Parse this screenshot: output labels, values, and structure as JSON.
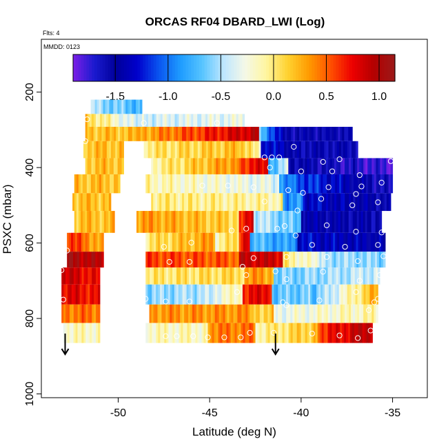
{
  "chart_data": {
    "type": "heatmap",
    "title": "ORCAS RF04 DBARD_LWI (Log)",
    "note_top": "Flts: 4",
    "note_inside": "MMDD: 0123",
    "xlabel": "Latitude (deg N)",
    "ylabel": "PSXC (mbar)",
    "xlim": [
      -54.2,
      -33.1
    ],
    "ylim": [
      1010,
      60
    ],
    "y_reversed": true,
    "x_ticks": [
      -50,
      -45,
      -40,
      -35
    ],
    "y_ticks": [
      200,
      400,
      600,
      800,
      1000
    ],
    "colorbar": {
      "range": [
        -1.9,
        1.15
      ],
      "ticks": [
        -1.5,
        -1.0,
        -0.5,
        0.0,
        0.5,
        1.0
      ],
      "colors": [
        "#7b1fe6",
        "#1a1acf",
        "#00009a",
        "#0000cc",
        "#0a55f0",
        "#1e9bff",
        "#55c4ff",
        "#bde6ff",
        "#f4f8e8",
        "#fff6a0",
        "#ffd230",
        "#ff9a00",
        "#ff5000",
        "#ee0000",
        "#b40000",
        "#9b1a1a"
      ]
    },
    "arrows_at_latitude": [
      -52.9,
      -41.4
    ],
    "bands": [
      {
        "p0": 220,
        "p1": 258,
        "segments": [
          [
            -51.5,
            -48.7,
            [
              -0.5,
              -0.75
            ]
          ]
        ]
      },
      {
        "p0": 258,
        "p1": 292,
        "segments": [
          [
            -51.8,
            -48.7,
            [
              0.15,
              -0.5
            ]
          ],
          [
            -48.7,
            -43.1,
            [
              -0.4,
              -0.3
            ]
          ]
        ]
      },
      {
        "p0": 292,
        "p1": 330,
        "segments": [
          [
            -51.8,
            -48.9,
            [
              0.2,
              0.2
            ]
          ],
          [
            -48.9,
            -42.3,
            [
              0.25,
              0.95
            ]
          ],
          [
            -42.3,
            -41.0,
            [
              -0.6,
              -1.45
            ]
          ],
          [
            -41.0,
            -37.2,
            [
              -1.55,
              -1.55
            ]
          ]
        ]
      },
      {
        "p0": 330,
        "p1": 375,
        "segments": [
          [
            -51.9,
            -49.7,
            [
              0.2,
              0.2
            ]
          ],
          [
            -48.6,
            -43.5,
            [
              0.0,
              0.2
            ]
          ],
          [
            -43.5,
            -42.2,
            [
              0.3,
              -0.2
            ]
          ],
          [
            -42.2,
            -40.0,
            [
              -1.2,
              -1.55
            ]
          ],
          [
            -40.0,
            -36.9,
            [
              -1.55,
              -1.55
            ]
          ]
        ]
      },
      {
        "p0": 375,
        "p1": 418,
        "segments": [
          [
            -51.8,
            -49.7,
            [
              0.2,
              0.2
            ]
          ],
          [
            -48.2,
            -43.4,
            [
              -0.1,
              0.4
            ]
          ],
          [
            -43.4,
            -41.8,
            [
              0.6,
              0.8
            ]
          ],
          [
            -41.8,
            -40.7,
            [
              -0.8,
              -0.4
            ]
          ],
          [
            -40.7,
            -35.0,
            [
              -1.5,
              -1.8
            ]
          ]
        ]
      },
      {
        "p0": 418,
        "p1": 468,
        "segments": [
          [
            -52.4,
            -49.9,
            [
              0.2,
              0.2
            ]
          ],
          [
            -48.5,
            -41.2,
            [
              -0.1,
              -0.35
            ]
          ],
          [
            -41.2,
            -40.5,
            [
              -0.95,
              -0.95
            ]
          ],
          [
            -40.5,
            -35.0,
            [
              -1.05,
              -1.7
            ]
          ]
        ]
      },
      {
        "p0": 468,
        "p1": 515,
        "segments": [
          [
            -52.5,
            -50.4,
            [
              0.2,
              0.2
            ]
          ],
          [
            -48.2,
            -41.0,
            [
              0.0,
              -0.1
            ]
          ],
          [
            -41.0,
            -39.9,
            [
              -0.9,
              -0.9
            ]
          ],
          [
            -39.9,
            -35.1,
            [
              -1.3,
              -1.55
            ]
          ]
        ]
      },
      {
        "p0": 515,
        "p1": 573,
        "segments": [
          [
            -52.4,
            -50.2,
            [
              0.2,
              0.2
            ]
          ],
          [
            -49.0,
            -43.4,
            [
              0.35,
              0.1
            ]
          ],
          [
            -43.4,
            -42.6,
            [
              0.7,
              0.8
            ]
          ],
          [
            -42.6,
            -40.0,
            [
              -0.4,
              -0.75
            ]
          ],
          [
            -40.0,
            -35.6,
            [
              -1.45,
              -1.55
            ]
          ]
        ]
      },
      {
        "p0": 573,
        "p1": 623,
        "segments": [
          [
            -52.8,
            -50.8,
            [
              0.7,
              0.2
            ]
          ],
          [
            -48.5,
            -44.7,
            [
              0.0,
              0.35
            ]
          ],
          [
            -44.7,
            -43.4,
            [
              -0.15,
              0.15
            ]
          ],
          [
            -43.4,
            -42.8,
            [
              0.7,
              0.85
            ]
          ],
          [
            -42.8,
            -40.2,
            [
              -0.7,
              -0.9
            ]
          ],
          [
            -40.2,
            -35.4,
            [
              -1.3,
              -1.45
            ]
          ]
        ]
      },
      {
        "p0": 623,
        "p1": 665,
        "segments": [
          [
            -52.8,
            -50.8,
            [
              1.05,
              0.9
            ]
          ],
          [
            -48.5,
            -43.4,
            [
              0.6,
              0.5
            ]
          ],
          [
            -43.4,
            -41.0,
            [
              0.9,
              0.85
            ]
          ],
          [
            -41.0,
            -39.0,
            [
              0.0,
              -0.3
            ]
          ],
          [
            -39.0,
            -35.4,
            [
              -0.5,
              -0.6
            ]
          ]
        ]
      },
      {
        "p0": 665,
        "p1": 710,
        "segments": [
          [
            -53.1,
            -51.0,
            [
              0.9,
              0.7
            ]
          ],
          [
            -48.5,
            -43.1,
            [
              0.0,
              0.1
            ]
          ],
          [
            -43.1,
            -41.5,
            [
              0.35,
              0.3
            ]
          ],
          [
            -41.5,
            -35.7,
            [
              -0.65,
              -0.4
            ]
          ]
        ]
      },
      {
        "p0": 710,
        "p1": 763,
        "segments": [
          [
            -53.1,
            -51.0,
            [
              0.8,
              0.7
            ]
          ],
          [
            -48.5,
            -44.7,
            [
              -0.6,
              -0.45
            ]
          ],
          [
            -44.7,
            -43.2,
            [
              -0.3,
              -0.1
            ]
          ],
          [
            -43.2,
            -41.6,
            [
              0.7,
              0.8
            ]
          ],
          [
            -41.6,
            -39.5,
            [
              -0.7,
              -0.6
            ]
          ],
          [
            -39.5,
            -35.8,
            [
              -0.75,
              0.3
            ]
          ]
        ]
      },
      {
        "p0": 763,
        "p1": 812,
        "segments": [
          [
            -53.1,
            -51.0,
            [
              0.45,
              0.45
            ]
          ],
          [
            -48.3,
            -42.7,
            [
              0.35,
              0.35
            ]
          ],
          [
            -42.7,
            -41.5,
            [
              0.15,
              0.15
            ]
          ],
          [
            -41.5,
            -35.8,
            [
              -0.3,
              -0.1
            ]
          ]
        ]
      },
      {
        "p0": 812,
        "p1": 865,
        "segments": [
          [
            -53.0,
            -51.0,
            [
              -0.15,
              -0.15
            ]
          ],
          [
            -48.5,
            -45.1,
            [
              -0.15,
              -0.15
            ]
          ],
          [
            -45.1,
            -42.5,
            [
              0.4,
              0.45
            ]
          ],
          [
            -42.5,
            -39.1,
            [
              -0.1,
              0.2
            ]
          ],
          [
            -39.1,
            -36.1,
            [
              0.6,
              1.0
            ]
          ]
        ]
      }
    ],
    "markers": [
      [
        -52.4,
        225
      ],
      [
        -51.7,
        272
      ],
      [
        -51.8,
        330
      ],
      [
        -48.6,
        282
      ],
      [
        -44.6,
        282
      ],
      [
        -42.0,
        373
      ],
      [
        -41.6,
        373
      ],
      [
        -41.2,
        373
      ],
      [
        -41.7,
        400
      ],
      [
        -40.4,
        345
      ],
      [
        -38.8,
        385
      ],
      [
        -37.9,
        378
      ],
      [
        -35.1,
        383
      ],
      [
        -40.0,
        410
      ],
      [
        -38.3,
        410
      ],
      [
        -36.8,
        420
      ],
      [
        -35.6,
        440
      ],
      [
        -45.4,
        448
      ],
      [
        -44.0,
        448
      ],
      [
        -42.6,
        452
      ],
      [
        -40.7,
        460
      ],
      [
        -39.9,
        467
      ],
      [
        -38.5,
        452
      ],
      [
        -37.0,
        470
      ],
      [
        -36.7,
        450
      ],
      [
        -42.0,
        490
      ],
      [
        -38.9,
        483
      ],
      [
        -37.2,
        500
      ],
      [
        -35.8,
        492
      ],
      [
        -40.2,
        514
      ],
      [
        -43.0,
        562
      ],
      [
        -41.3,
        562
      ],
      [
        -38.6,
        553
      ],
      [
        -37.0,
        570
      ],
      [
        -35.6,
        572
      ],
      [
        -43.8,
        567
      ],
      [
        -47.5,
        610
      ],
      [
        -46.0,
        599
      ],
      [
        -40.9,
        555
      ],
      [
        -40.3,
        580
      ],
      [
        -39.4,
        605
      ],
      [
        -37.6,
        610
      ],
      [
        -35.8,
        605
      ],
      [
        -52.8,
        620
      ],
      [
        -47.2,
        650
      ],
      [
        -46.1,
        650
      ],
      [
        -42.6,
        640
      ],
      [
        -43.2,
        663
      ],
      [
        -40.8,
        637
      ],
      [
        -38.6,
        637
      ],
      [
        -36.9,
        648
      ],
      [
        -35.5,
        635
      ],
      [
        -53.1,
        672
      ],
      [
        -50.6,
        680
      ],
      [
        -43.0,
        685
      ],
      [
        -41.4,
        675
      ],
      [
        -40.8,
        696
      ],
      [
        -38.8,
        676
      ],
      [
        -36.8,
        700
      ],
      [
        -35.7,
        685
      ],
      [
        -53.0,
        750
      ],
      [
        -48.5,
        748
      ],
      [
        -47.4,
        755
      ],
      [
        -46.1,
        755
      ],
      [
        -43.5,
        730
      ],
      [
        -41.0,
        757
      ],
      [
        -39.0,
        752
      ],
      [
        -37.0,
        730
      ],
      [
        -36.0,
        757
      ],
      [
        -35.8,
        748
      ],
      [
        -40.8,
        765
      ],
      [
        -36.3,
        778
      ],
      [
        -47.4,
        847
      ],
      [
        -46.8,
        847
      ],
      [
        -45.9,
        847
      ],
      [
        -45.1,
        850
      ],
      [
        -44.2,
        850
      ],
      [
        -43.3,
        850
      ],
      [
        -42.8,
        838
      ],
      [
        -41.5,
        838
      ],
      [
        -39.4,
        840
      ],
      [
        -37.9,
        845
      ],
      [
        -36.9,
        852
      ],
      [
        -36.2,
        832
      ]
    ]
  }
}
